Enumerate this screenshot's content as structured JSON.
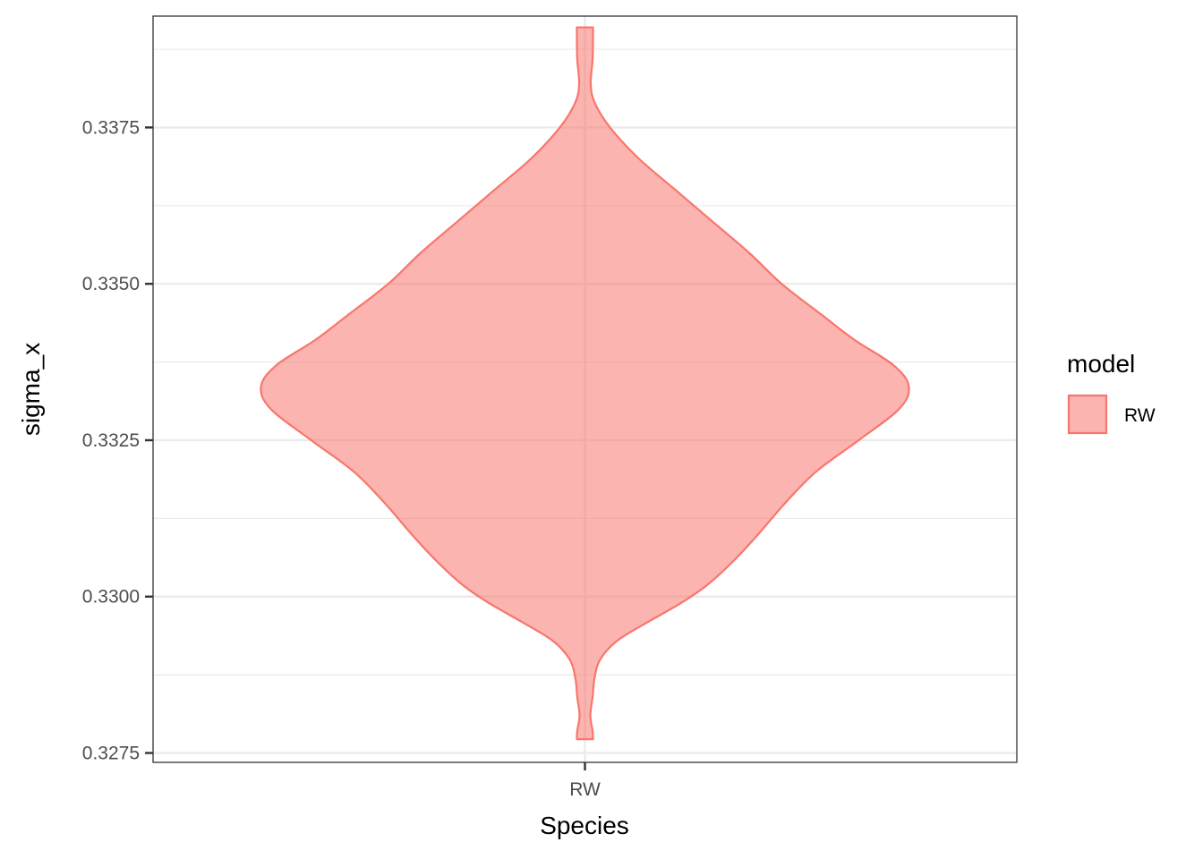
{
  "chart_data": {
    "type": "violin",
    "title": "",
    "xlabel": "Species",
    "ylabel": "sigma_x",
    "categories": [
      "RW"
    ],
    "ylim": [
      0.32735,
      0.33928
    ],
    "yticks": [
      0.3275,
      0.33,
      0.3325,
      0.335,
      0.3375
    ],
    "ytick_labels": [
      "0.3275",
      "0.3300",
      "0.3325",
      "0.3350",
      "0.3375"
    ],
    "grid": true,
    "legend": {
      "title": "model",
      "position": "right",
      "entries": [
        {
          "label": "RW",
          "fill": "#F8766D",
          "fill_opacity": 0.55,
          "stroke": "#F8766D"
        }
      ]
    },
    "series": [
      {
        "name": "RW",
        "category": "RW",
        "fill": "#F8766D",
        "stroke": "#F8766D",
        "density": [
          {
            "y": 0.32772,
            "w": 0.042
          },
          {
            "y": 0.32785,
            "w": 0.04
          },
          {
            "y": 0.3281,
            "w": 0.028
          },
          {
            "y": 0.3284,
            "w": 0.04
          },
          {
            "y": 0.3287,
            "w": 0.05
          },
          {
            "y": 0.329,
            "w": 0.08
          },
          {
            "y": 0.3293,
            "w": 0.17
          },
          {
            "y": 0.3296,
            "w": 0.33
          },
          {
            "y": 0.3299,
            "w": 0.5
          },
          {
            "y": 0.3302,
            "w": 0.64
          },
          {
            "y": 0.3306,
            "w": 0.78
          },
          {
            "y": 0.331,
            "w": 0.9
          },
          {
            "y": 0.3315,
            "w": 1.04
          },
          {
            "y": 0.332,
            "w": 1.2
          },
          {
            "y": 0.3325,
            "w": 1.42
          },
          {
            "y": 0.333,
            "w": 1.63
          },
          {
            "y": 0.33336,
            "w": 1.68
          },
          {
            "y": 0.3337,
            "w": 1.6
          },
          {
            "y": 0.3341,
            "w": 1.4
          },
          {
            "y": 0.3345,
            "w": 1.23
          },
          {
            "y": 0.335,
            "w": 1.02
          },
          {
            "y": 0.3355,
            "w": 0.85
          },
          {
            "y": 0.336,
            "w": 0.66
          },
          {
            "y": 0.3365,
            "w": 0.47
          },
          {
            "y": 0.337,
            "w": 0.28
          },
          {
            "y": 0.3375,
            "w": 0.13
          },
          {
            "y": 0.3379,
            "w": 0.05
          },
          {
            "y": 0.3382,
            "w": 0.03
          },
          {
            "y": 0.3386,
            "w": 0.04
          },
          {
            "y": 0.3391,
            "w": 0.042
          }
        ]
      }
    ]
  }
}
